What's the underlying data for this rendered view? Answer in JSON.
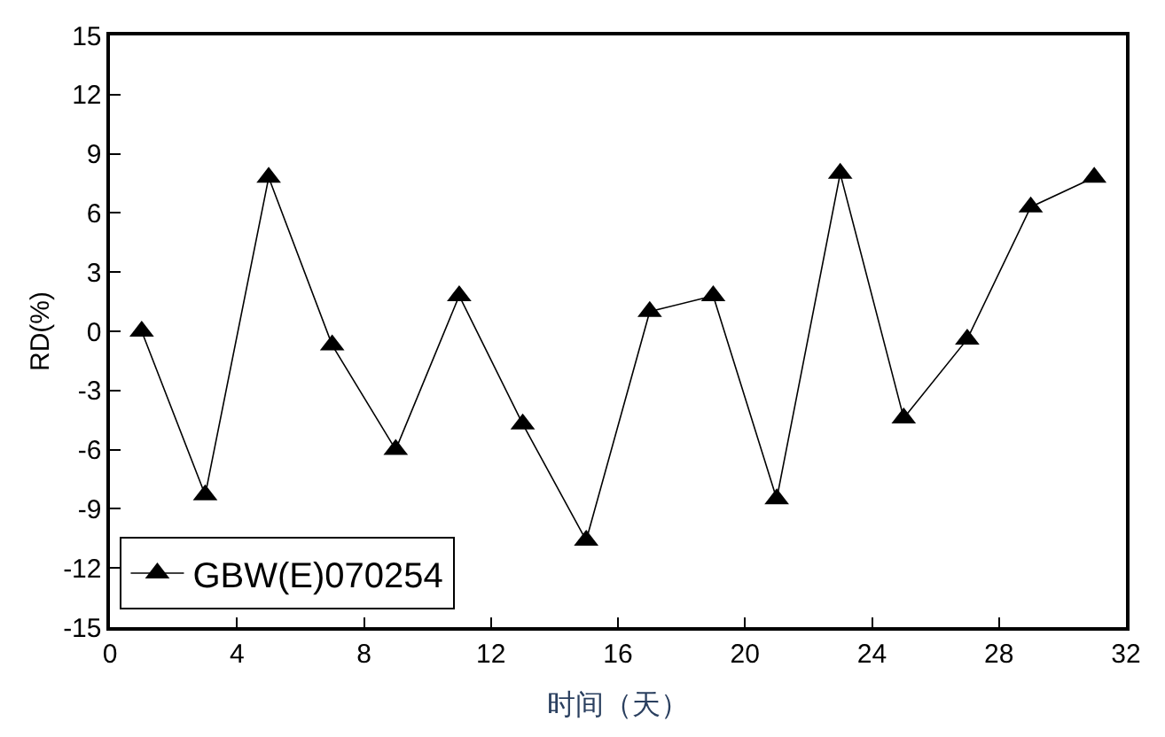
{
  "chart_data": {
    "type": "line",
    "xlabel": "时间（天）",
    "ylabel": "RD(%)",
    "x": [
      1,
      3,
      5,
      7,
      9,
      11,
      13,
      15,
      17,
      19,
      21,
      23,
      25,
      27,
      29,
      31
    ],
    "series": [
      {
        "name": "GBW(E)070254",
        "color": "#000000",
        "values": [
          0,
          -8.3,
          7.8,
          -0.7,
          -6.0,
          1.8,
          -4.7,
          -10.6,
          1.0,
          1.8,
          -8.5,
          8.0,
          -4.4,
          -0.4,
          6.3,
          7.8
        ]
      }
    ],
    "xlim": [
      0,
      32
    ],
    "xticks": [
      0,
      4,
      8,
      12,
      16,
      20,
      24,
      28,
      32
    ],
    "ylim": [
      -15,
      15
    ],
    "yticks": [
      -15,
      -12,
      -9,
      -6,
      -3,
      0,
      3,
      6,
      9,
      12,
      15
    ],
    "legend": "bottom left",
    "marker": "triangle",
    "line_style": "solid"
  }
}
